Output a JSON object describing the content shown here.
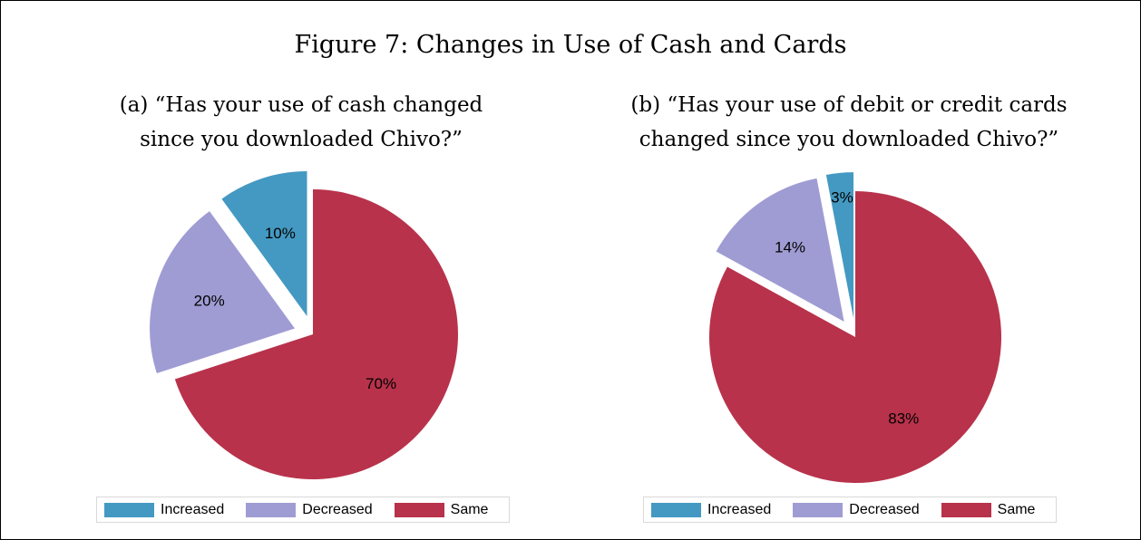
{
  "figure_title": "Figure 7: Changes in Use of Cash and Cards",
  "colors": {
    "Increased": "#4499c2",
    "Decreased": "#9f9cd4",
    "Same": "#b8324b"
  },
  "chart_data": [
    {
      "type": "pie",
      "subtitle_lines": [
        "(a) “Has your use of cash changed",
        "since you downloaded Chivo?”"
      ],
      "slices": [
        {
          "label": "Increased",
          "value": 10,
          "display": "10%",
          "exploded": true
        },
        {
          "label": "Decreased",
          "value": 20,
          "display": "20%",
          "exploded": true
        },
        {
          "label": "Same",
          "value": 70,
          "display": "70%",
          "exploded": false
        }
      ],
      "legend": [
        "Increased",
        "Decreased",
        "Same"
      ],
      "legend_position": "bottom"
    },
    {
      "type": "pie",
      "subtitle_lines": [
        "(b) “Has your use of debit or credit cards",
        "changed since you downloaded Chivo?”"
      ],
      "slices": [
        {
          "label": "Increased",
          "value": 3,
          "display": "3%",
          "exploded": true
        },
        {
          "label": "Decreased",
          "value": 14,
          "display": "14%",
          "exploded": true
        },
        {
          "label": "Same",
          "value": 83,
          "display": "83%",
          "exploded": false
        }
      ],
      "legend": [
        "Increased",
        "Decreased",
        "Same"
      ],
      "legend_position": "bottom"
    }
  ]
}
